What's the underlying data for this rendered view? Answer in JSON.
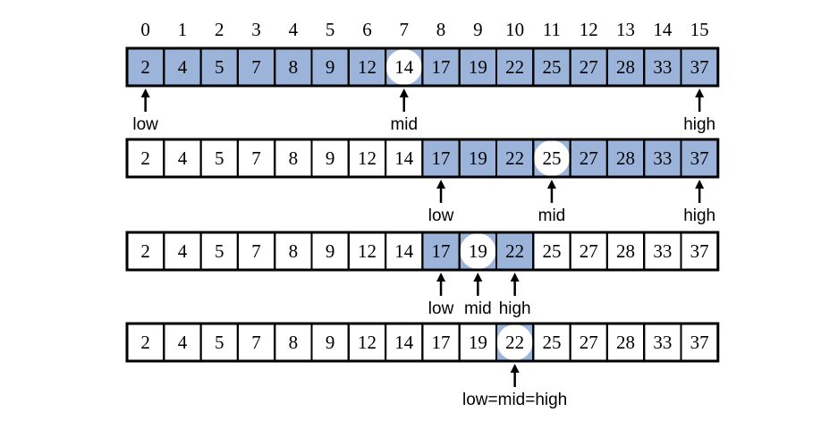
{
  "colors": {
    "active": "#9cb3da",
    "inactive": "#ffffff",
    "border": "#000000",
    "mid_highlight": "#ffffff"
  },
  "indices": [
    "0",
    "1",
    "2",
    "3",
    "4",
    "5",
    "6",
    "7",
    "8",
    "9",
    "10",
    "11",
    "12",
    "13",
    "14",
    "15"
  ],
  "values": [
    "2",
    "4",
    "5",
    "7",
    "8",
    "9",
    "12",
    "14",
    "17",
    "19",
    "22",
    "25",
    "27",
    "28",
    "33",
    "37"
  ],
  "rows": [
    {
      "low": 0,
      "high": 15,
      "mid": 7,
      "pointers": [
        {
          "index": 0,
          "label": "low"
        },
        {
          "index": 7,
          "label": "mid"
        },
        {
          "index": 15,
          "label": "high"
        }
      ]
    },
    {
      "low": 8,
      "high": 15,
      "mid": 11,
      "pointers": [
        {
          "index": 8,
          "label": "low"
        },
        {
          "index": 11,
          "label": "mid"
        },
        {
          "index": 15,
          "label": "high"
        }
      ]
    },
    {
      "low": 8,
      "high": 10,
      "mid": 9,
      "pointers": [
        {
          "index": 8,
          "label": "low"
        },
        {
          "index": 9,
          "label": "mid"
        },
        {
          "index": 10,
          "label": "high"
        }
      ]
    },
    {
      "low": 10,
      "high": 10,
      "mid": 10,
      "pointers": [
        {
          "index": 10,
          "label": "low=mid=high"
        }
      ]
    }
  ]
}
